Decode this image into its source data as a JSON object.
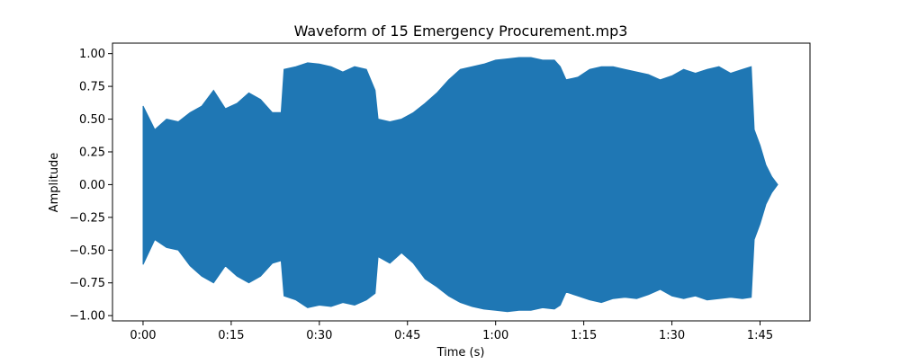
{
  "chart_data": {
    "type": "area",
    "title": "Waveform of 15 Emergency Procurement.mp3",
    "xlabel": "Time (s)",
    "ylabel": "Amplitude",
    "xlim": [
      -5.2,
      113.5
    ],
    "ylim": [
      -1.04,
      1.08
    ],
    "x_ticks": [
      {
        "value": 0,
        "label": "0:00"
      },
      {
        "value": 15,
        "label": "0:15"
      },
      {
        "value": 30,
        "label": "0:30"
      },
      {
        "value": 45,
        "label": "0:45"
      },
      {
        "value": 60,
        "label": "1:00"
      },
      {
        "value": 75,
        "label": "1:15"
      },
      {
        "value": 90,
        "label": "1:30"
      },
      {
        "value": 105,
        "label": "1:45"
      }
    ],
    "y_ticks": [
      {
        "value": 1.0,
        "label": "1.00"
      },
      {
        "value": 0.75,
        "label": "0.75"
      },
      {
        "value": 0.5,
        "label": "0.50"
      },
      {
        "value": 0.25,
        "label": "0.25"
      },
      {
        "value": 0.0,
        "label": "0.00"
      },
      {
        "value": -0.25,
        "label": "−0.25"
      },
      {
        "value": -0.5,
        "label": "−0.50"
      },
      {
        "value": -0.75,
        "label": "−0.75"
      },
      {
        "value": -1.0,
        "label": "−1.00"
      }
    ],
    "grid": false,
    "series": [
      {
        "color": "#1f77b4",
        "x": [
          0,
          2,
          4,
          6,
          8,
          10,
          12,
          14,
          16,
          18,
          20,
          22,
          23.5,
          24,
          26,
          28,
          30,
          32,
          34,
          36,
          38,
          39.5,
          40,
          42,
          44,
          46,
          48,
          50,
          52,
          54,
          56,
          58,
          60,
          62,
          64,
          66,
          68,
          70,
          71,
          72,
          74,
          76,
          78,
          80,
          82,
          84,
          86,
          88,
          90,
          92,
          94,
          96,
          98,
          100,
          102,
          103.5,
          104,
          105,
          106,
          107,
          108
        ],
        "upper": [
          0.6,
          0.42,
          0.5,
          0.48,
          0.55,
          0.6,
          0.72,
          0.58,
          0.62,
          0.7,
          0.65,
          0.55,
          0.55,
          0.88,
          0.9,
          0.93,
          0.92,
          0.9,
          0.86,
          0.9,
          0.88,
          0.72,
          0.5,
          0.48,
          0.5,
          0.55,
          0.62,
          0.7,
          0.8,
          0.88,
          0.9,
          0.92,
          0.95,
          0.96,
          0.97,
          0.97,
          0.95,
          0.95,
          0.9,
          0.8,
          0.82,
          0.88,
          0.9,
          0.9,
          0.88,
          0.86,
          0.84,
          0.8,
          0.83,
          0.88,
          0.85,
          0.88,
          0.9,
          0.85,
          0.88,
          0.9,
          0.42,
          0.3,
          0.15,
          0.06,
          0.0
        ],
        "lower": [
          -0.61,
          -0.42,
          -0.48,
          -0.5,
          -0.62,
          -0.7,
          -0.75,
          -0.62,
          -0.7,
          -0.75,
          -0.7,
          -0.6,
          -0.58,
          -0.85,
          -0.88,
          -0.94,
          -0.92,
          -0.93,
          -0.9,
          -0.92,
          -0.88,
          -0.83,
          -0.55,
          -0.6,
          -0.52,
          -0.6,
          -0.72,
          -0.78,
          -0.85,
          -0.9,
          -0.93,
          -0.95,
          -0.96,
          -0.97,
          -0.96,
          -0.96,
          -0.94,
          -0.95,
          -0.92,
          -0.82,
          -0.85,
          -0.88,
          -0.9,
          -0.87,
          -0.86,
          -0.87,
          -0.84,
          -0.8,
          -0.85,
          -0.87,
          -0.85,
          -0.88,
          -0.87,
          -0.86,
          -0.87,
          -0.86,
          -0.42,
          -0.3,
          -0.15,
          -0.06,
          0.0
        ]
      }
    ]
  }
}
